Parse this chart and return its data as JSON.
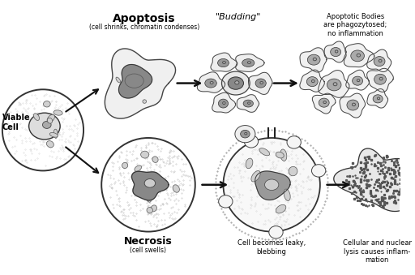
{
  "background_color": "#ffffff",
  "fig_width": 5.12,
  "fig_height": 3.39,
  "dpi": 100,
  "labels": {
    "apoptosis_title": "Apoptosis",
    "apoptosis_sub": "(cell shrinks, chromatin condenses)",
    "budding": "\"Budding\"",
    "apoptotic_bodies": "Apoptotic Bodies\nare phagozytosed;\nno inflammation",
    "viable_cell": "Viable\nCell",
    "necrosis_title": "Necrosis",
    "necrosis_sub": "(cell swells)",
    "leaky": "Cell becomes leaky,\nblebbing",
    "lysis": "Cellular and nuclear\nlysis causes inflam-\nmation"
  },
  "colors": {
    "text": "#000000",
    "cell_edge": "#444444",
    "arrow": "#111111"
  }
}
